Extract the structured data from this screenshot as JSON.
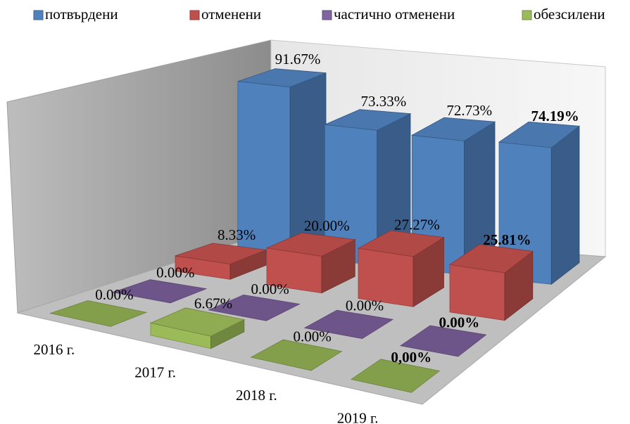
{
  "chart_data": {
    "type": "bar3d",
    "categories": [
      "2016 г.",
      "2017 г.",
      "2018 г.",
      "2019 г."
    ],
    "series": [
      {
        "name": "потвърдени",
        "color": "#4f81bd",
        "values": [
          91.67,
          73.33,
          72.73,
          74.19
        ],
        "value_labels": [
          "91.67%",
          "73.33%",
          "72.73%",
          "74.19%"
        ]
      },
      {
        "name": "отменени",
        "color": "#c0504d",
        "values": [
          8.33,
          20.0,
          27.27,
          25.81
        ],
        "value_labels": [
          "8.33%",
          "20.00%",
          "27.27%",
          "25.81%"
        ]
      },
      {
        "name": "частично отменени",
        "color": "#8064a2",
        "values": [
          0,
          0,
          0,
          0
        ],
        "value_labels": [
          "0.00%",
          "0.00%",
          "0.00%",
          "0.00%"
        ]
      },
      {
        "name": "обезсилени",
        "color": "#9bbb59",
        "values": [
          0,
          6.67,
          0,
          0
        ],
        "value_labels": [
          "0.00%",
          "6.67%",
          "0.00%",
          "0,00%"
        ]
      }
    ]
  }
}
